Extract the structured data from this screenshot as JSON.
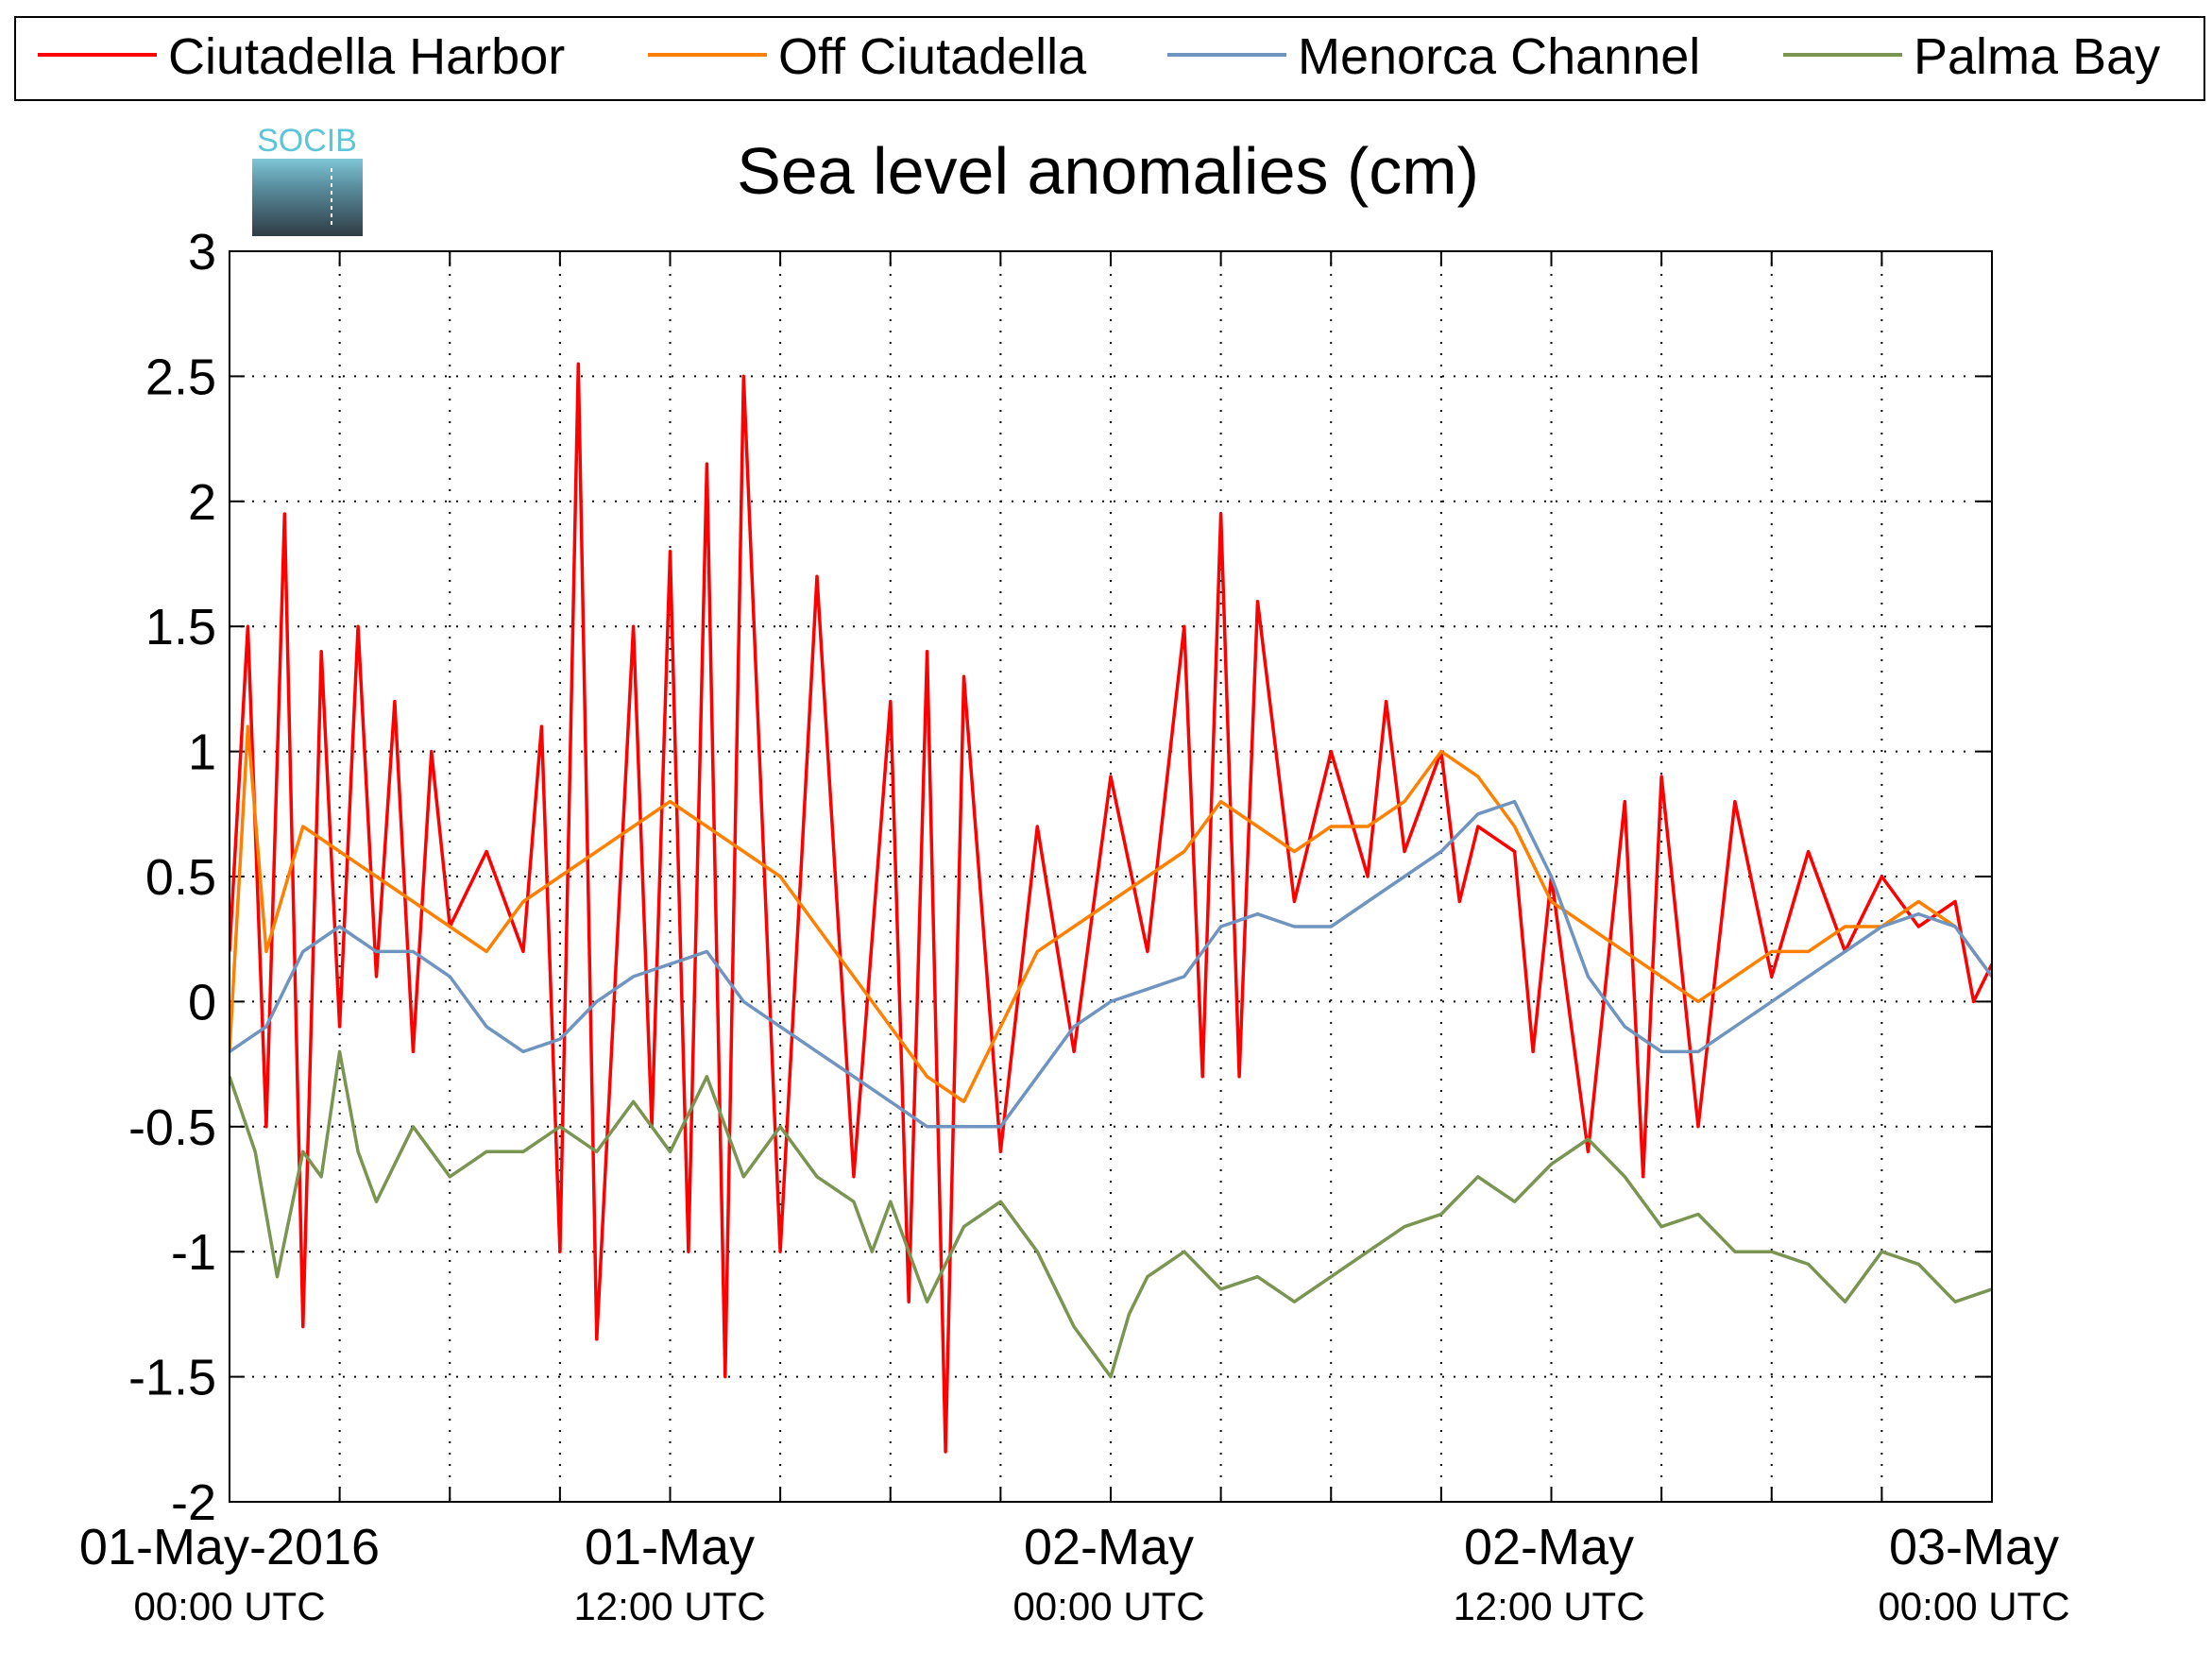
{
  "logo": {
    "text": "SOCIB"
  },
  "chart_data": {
    "type": "line",
    "title": "Sea level anomalies (cm)",
    "xlabel": "",
    "ylabel": "",
    "ylim": [
      -2,
      3
    ],
    "yticks": [
      -2,
      -1.5,
      -1,
      -0.5,
      0,
      0.5,
      1,
      1.5,
      2,
      2.5,
      3
    ],
    "ytick_labels": [
      "-2",
      "-1.5",
      "-1",
      "-0.5",
      "0",
      "0.5",
      "1",
      "1.5",
      "2",
      "2.5",
      "3"
    ],
    "xlim_hours": [
      0,
      48
    ],
    "x_minor_ticks_hours": [
      3,
      6,
      9,
      12,
      15,
      18,
      21,
      24,
      27,
      30,
      33,
      36,
      39,
      42,
      45
    ],
    "x_tick_labels": [
      {
        "hour": 0,
        "date": "01-May-2016",
        "time": "00:00 UTC"
      },
      {
        "hour": 12,
        "date": "01-May",
        "time": "12:00 UTC"
      },
      {
        "hour": 24,
        "date": "02-May",
        "time": "00:00 UTC"
      },
      {
        "hour": 36,
        "date": "02-May",
        "time": "12:00 UTC"
      },
      {
        "hour": 48,
        "date": "03-May",
        "time": "00:00 UTC"
      }
    ],
    "grid": true,
    "legend_position": "top",
    "series": [
      {
        "name": "Ciutadella Harbor",
        "color": "#ff0000",
        "x_hours": [
          0,
          0.5,
          1,
          1.5,
          2,
          2.5,
          3,
          3.5,
          4,
          4.5,
          5,
          5.5,
          6,
          7,
          8,
          8.5,
          9,
          9.5,
          10,
          11,
          11.5,
          12,
          12.5,
          13,
          13.5,
          14,
          15,
          16,
          17,
          18,
          18.5,
          19,
          19.5,
          20,
          21,
          22,
          23,
          24,
          25,
          26,
          26.5,
          27,
          27.5,
          28,
          29,
          30,
          31,
          31.5,
          32,
          33,
          33.5,
          34,
          35,
          35.5,
          36,
          37,
          38,
          38.5,
          39,
          40,
          41,
          42,
          43,
          44,
          45,
          46,
          47,
          47.5,
          48
        ],
        "values": [
          0.2,
          1.5,
          -0.5,
          1.95,
          -1.3,
          1.4,
          -0.1,
          1.5,
          0.1,
          1.2,
          -0.2,
          1.0,
          0.3,
          0.6,
          0.2,
          1.1,
          -1.0,
          2.55,
          -1.35,
          1.5,
          -0.5,
          1.8,
          -1.0,
          2.15,
          -1.5,
          2.5,
          -1.0,
          1.7,
          -0.7,
          1.2,
          -1.2,
          1.4,
          -1.8,
          1.3,
          -0.6,
          0.7,
          -0.2,
          0.9,
          0.2,
          1.5,
          -0.3,
          1.95,
          -0.3,
          1.6,
          0.4,
          1.0,
          0.5,
          1.2,
          0.6,
          1.0,
          0.4,
          0.7,
          0.6,
          -0.2,
          0.5,
          -0.6,
          0.8,
          -0.7,
          0.9,
          -0.5,
          0.8,
          0.1,
          0.6,
          0.2,
          0.5,
          0.3,
          0.4,
          0.0,
          0.15
        ]
      },
      {
        "name": "Off Ciutadella",
        "color": "#ff8000",
        "x_hours": [
          0,
          0.5,
          1,
          2,
          3,
          4,
          5,
          6,
          7,
          8,
          9,
          10,
          11,
          12,
          13,
          14,
          15,
          16,
          17,
          18,
          19,
          20,
          21,
          22,
          23,
          24,
          25,
          26,
          27,
          28,
          29,
          30,
          31,
          32,
          33,
          34,
          35,
          36,
          37,
          38,
          39,
          40,
          41,
          42,
          43,
          44,
          45,
          46,
          47,
          48
        ],
        "values": [
          -0.2,
          1.1,
          0.2,
          0.7,
          0.6,
          0.5,
          0.4,
          0.3,
          0.2,
          0.4,
          0.5,
          0.6,
          0.7,
          0.8,
          0.7,
          0.6,
          0.5,
          0.3,
          0.1,
          -0.1,
          -0.3,
          -0.4,
          -0.1,
          0.2,
          0.3,
          0.4,
          0.5,
          0.6,
          0.8,
          0.7,
          0.6,
          0.7,
          0.7,
          0.8,
          1.0,
          0.9,
          0.7,
          0.4,
          0.3,
          0.2,
          0.1,
          0.0,
          0.1,
          0.2,
          0.2,
          0.3,
          0.3,
          0.4,
          0.3,
          0.1
        ]
      },
      {
        "name": "Menorca Channel",
        "color": "#6f94bf",
        "x_hours": [
          0,
          1,
          2,
          3,
          4,
          5,
          6,
          7,
          8,
          9,
          10,
          11,
          12,
          13,
          14,
          15,
          16,
          17,
          18,
          19,
          20,
          21,
          22,
          23,
          24,
          25,
          26,
          27,
          28,
          29,
          30,
          31,
          32,
          33,
          34,
          35,
          36,
          37,
          38,
          39,
          40,
          41,
          42,
          43,
          44,
          45,
          46,
          47,
          48
        ],
        "values": [
          -0.2,
          -0.1,
          0.2,
          0.3,
          0.2,
          0.2,
          0.1,
          -0.1,
          -0.2,
          -0.15,
          0.0,
          0.1,
          0.15,
          0.2,
          0.0,
          -0.1,
          -0.2,
          -0.3,
          -0.4,
          -0.5,
          -0.5,
          -0.5,
          -0.3,
          -0.1,
          0.0,
          0.05,
          0.1,
          0.3,
          0.35,
          0.3,
          0.3,
          0.4,
          0.5,
          0.6,
          0.75,
          0.8,
          0.5,
          0.1,
          -0.1,
          -0.2,
          -0.2,
          -0.1,
          0.0,
          0.1,
          0.2,
          0.3,
          0.35,
          0.3,
          0.1
        ]
      },
      {
        "name": "Palma Bay",
        "color": "#7a9451",
        "x_hours": [
          0,
          0.7,
          1.3,
          2,
          2.5,
          3,
          3.5,
          4,
          5,
          6,
          7,
          8,
          9,
          10,
          11,
          12,
          13,
          14,
          15,
          16,
          17,
          17.5,
          18,
          19,
          20,
          21,
          22,
          23,
          24,
          24.5,
          25,
          26,
          27,
          28,
          29,
          30,
          31,
          32,
          33,
          34,
          35,
          36,
          37,
          38,
          39,
          40,
          41,
          42,
          43,
          44,
          45,
          46,
          47,
          48
        ],
        "values": [
          -0.3,
          -0.6,
          -1.1,
          -0.6,
          -0.7,
          -0.2,
          -0.6,
          -0.8,
          -0.5,
          -0.7,
          -0.6,
          -0.6,
          -0.5,
          -0.6,
          -0.4,
          -0.6,
          -0.3,
          -0.7,
          -0.5,
          -0.7,
          -0.8,
          -1.0,
          -0.8,
          -1.2,
          -0.9,
          -0.8,
          -1.0,
          -1.3,
          -1.5,
          -1.25,
          -1.1,
          -1.0,
          -1.15,
          -1.1,
          -1.2,
          -1.1,
          -1.0,
          -0.9,
          -0.85,
          -0.7,
          -0.8,
          -0.65,
          -0.55,
          -0.7,
          -0.9,
          -0.85,
          -1.0,
          -1.0,
          -1.05,
          -1.2,
          -1.0,
          -1.05,
          -1.2,
          -1.15
        ]
      }
    ]
  }
}
